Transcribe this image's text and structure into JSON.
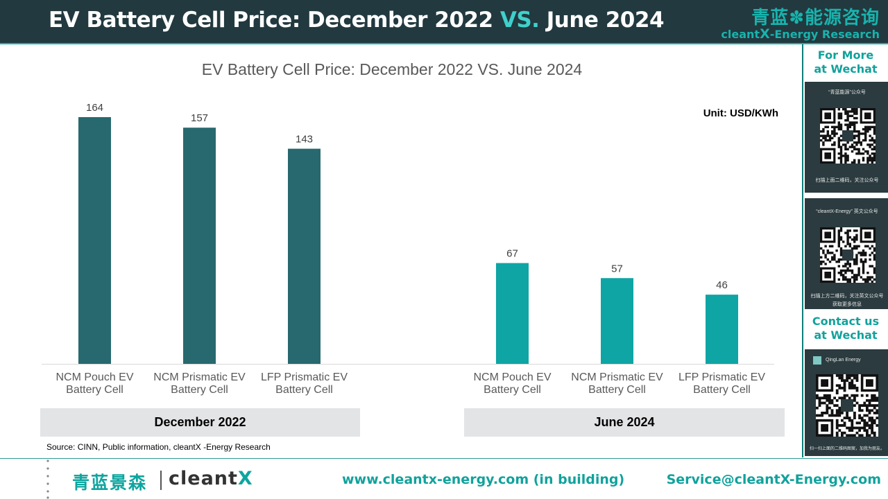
{
  "header": {
    "title_part1": "EV Battery Cell Price: December 2022 ",
    "title_vs": "VS.",
    "title_part2": " June 2024",
    "brand_cn": "青蓝✽能源咨询",
    "brand_en_a": "cleant",
    "brand_en_x": "X",
    "brand_en_b": "-Energy Research"
  },
  "side": {
    "more_line1": "For More",
    "more_line2": "at Wechat",
    "qr1_caption": "“青蓝能源”公众号",
    "qr1_footer": "扫描上面二维码，关注公众号",
    "qr2_caption": "“cleantX-Energy” 英文公众号",
    "qr2_footer1": "扫描上方二维码，关注英文公众号",
    "qr2_footer2": "获取更多信息",
    "contact_line1": "Contact us",
    "contact_line2": "at Wechat",
    "qr3_caption": "QingLan Energy",
    "qr3_footer": "扫一扫上面的二维码图案，加我为朋友。"
  },
  "chart_data": {
    "type": "bar",
    "title": "EV Battery Cell Price: December 2022 VS. June 2024",
    "unit_label": "Unit: USD/KWh",
    "groups": [
      {
        "name": "December 2022",
        "color": "#27696f",
        "categories": [
          [
            "NCM Pouch EV",
            "Battery Cell"
          ],
          [
            "NCM Prismatic EV",
            "Battery Cell"
          ],
          [
            "LFP Prismatic EV",
            "Battery Cell"
          ]
        ],
        "values": [
          164,
          157,
          143
        ]
      },
      {
        "name": "June 2024",
        "color": "#0ea5a4",
        "categories": [
          [
            "NCM Pouch EV",
            "Battery Cell"
          ],
          [
            "NCM Prismatic EV",
            "Battery Cell"
          ],
          [
            "LFP Prismatic EV",
            "Battery Cell"
          ]
        ],
        "values": [
          67,
          57,
          46
        ]
      }
    ],
    "ylim": [
      0,
      164
    ],
    "grid": false,
    "legend": "none"
  },
  "source": "Source: CINN, Public information, cleantX -Energy Research",
  "footer": {
    "logo_cn": "青蓝景森",
    "logo_en_a": "cleant",
    "logo_en_x": "X",
    "website": "www.cleantx-energy.com (in building)",
    "email": "Service@cleantX-Energy.com"
  }
}
